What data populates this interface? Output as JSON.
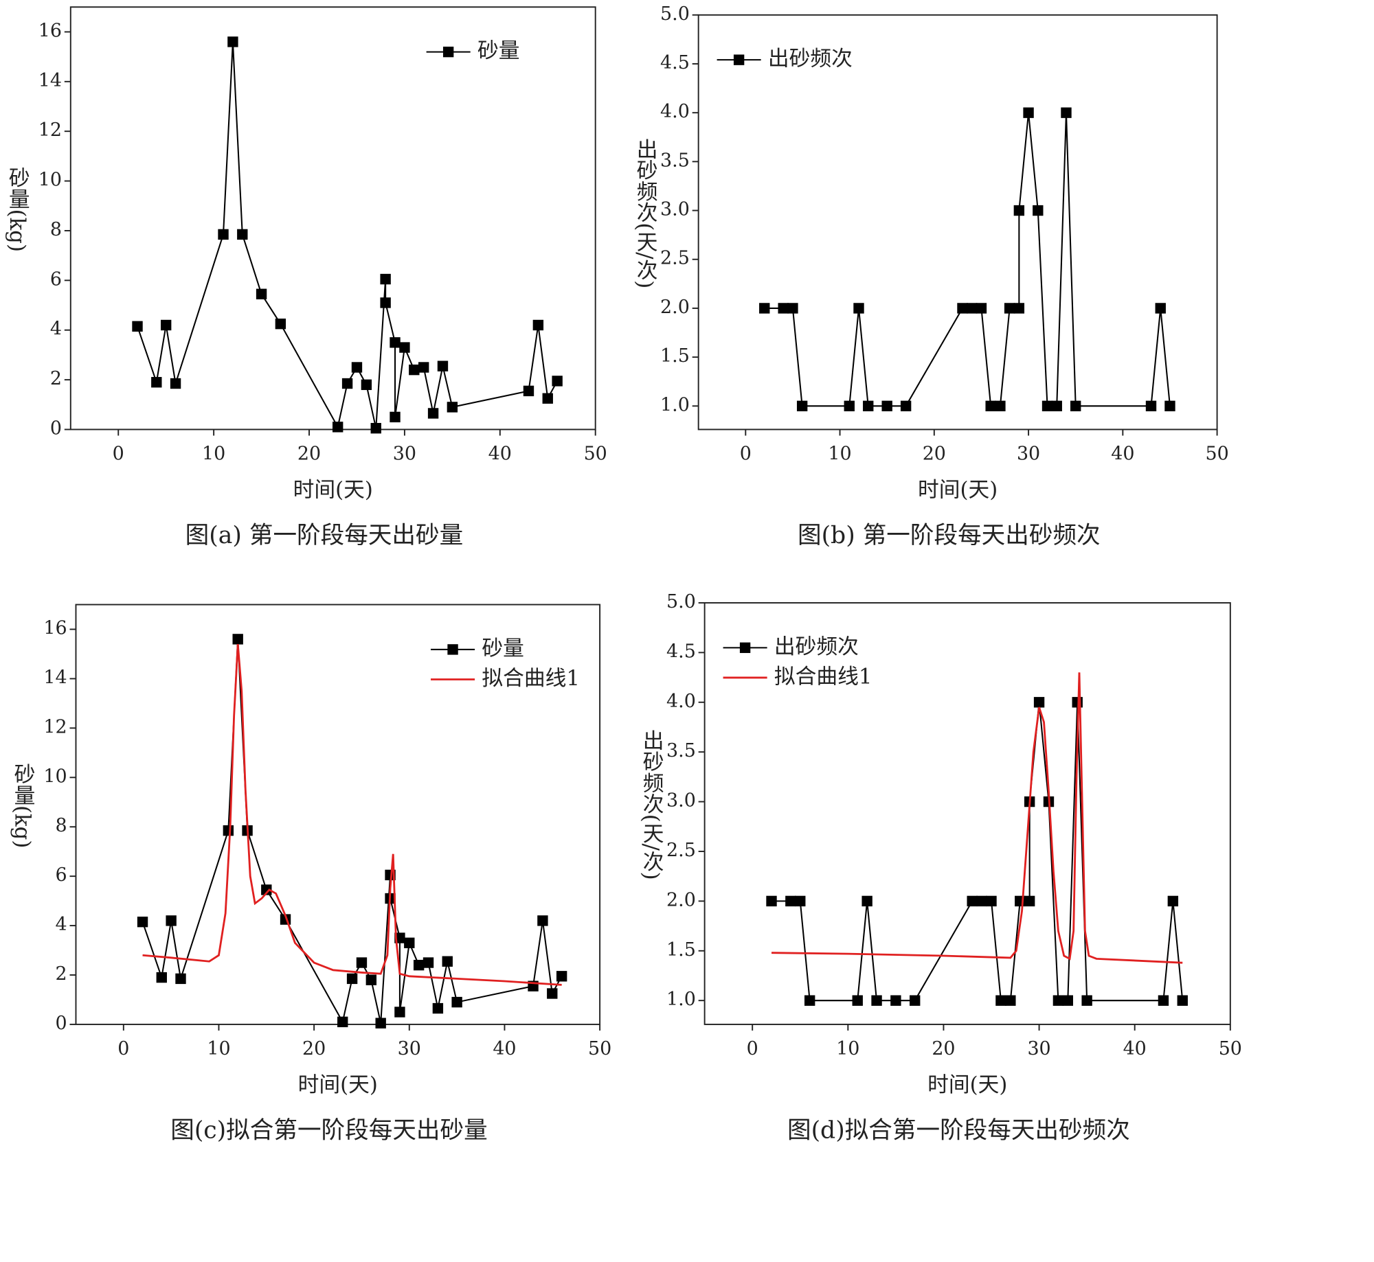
{
  "chart_data": [
    {
      "type": "line",
      "title": "图(a) 第一阶段每天出砂量",
      "x_label": "时间(天)",
      "y_label": "砂量(kg)",
      "legend": "upper right",
      "xlim": [
        -5,
        50
      ],
      "xticks": [
        0,
        10,
        20,
        30,
        40,
        50
      ],
      "ylim": [
        0,
        17
      ],
      "yticks": [
        0,
        2,
        4,
        6,
        8,
        10,
        12,
        14,
        16
      ],
      "series": [
        {
          "name": "砂量",
          "color": "#000000",
          "marker": "square",
          "x": [
            2,
            4,
            5,
            6,
            11,
            12,
            13,
            15,
            17,
            23,
            24,
            25,
            26,
            27,
            28,
            28,
            29,
            29,
            30,
            31,
            32,
            33,
            34,
            35,
            43,
            44,
            45,
            46
          ],
          "values": [
            4.15,
            1.9,
            4.2,
            1.85,
            7.85,
            15.6,
            7.85,
            5.45,
            4.25,
            0.1,
            1.85,
            2.5,
            1.8,
            0.05,
            6.05,
            5.1,
            3.5,
            0.5,
            3.3,
            2.4,
            2.5,
            0.65,
            2.55,
            0.9,
            1.55,
            4.2,
            1.25,
            1.95
          ]
        }
      ]
    },
    {
      "type": "line",
      "title": "图(b) 第一阶段每天出砂频次",
      "x_label": "时间(天)",
      "y_label": "出砂频次(天/次)",
      "legend": "upper left",
      "xlim": [
        -5,
        50
      ],
      "xticks": [
        0,
        10,
        20,
        30,
        40,
        50
      ],
      "ylim": [
        0.76,
        5
      ],
      "yticks": [
        {
          "value": 1,
          "label": "1.0"
        },
        1.5,
        {
          "value": 2,
          "label": "2.0"
        },
        2.5,
        {
          "value": 3,
          "label": "3.0"
        },
        3.5,
        {
          "value": 4,
          "label": "4.0"
        },
        4.5,
        {
          "value": 5,
          "label": "5.0"
        }
      ],
      "series": [
        {
          "name": "出砂频次",
          "color": "#000000",
          "marker": "square",
          "x": [
            2,
            4,
            5,
            6,
            11,
            12,
            13,
            15,
            17,
            23,
            24,
            25,
            26,
            27,
            28,
            29,
            29,
            30,
            31,
            32,
            33,
            34,
            35,
            43,
            44,
            45
          ],
          "values": [
            2,
            2,
            2,
            1,
            1,
            2,
            1,
            1,
            1,
            2,
            2,
            2,
            1,
            1,
            2,
            2,
            3,
            4,
            3,
            1,
            1,
            4,
            1,
            1,
            2,
            1
          ]
        }
      ]
    },
    {
      "type": "line",
      "title": "图(c)拟合第一阶段每天出砂量",
      "x_label": "时间(天)",
      "y_label": "砂量(kg)",
      "legend": "upper right",
      "xlim": [
        -5,
        50
      ],
      "xticks": [
        0,
        10,
        20,
        30,
        40,
        50
      ],
      "ylim": [
        0,
        17
      ],
      "yticks": [
        0,
        2,
        4,
        6,
        8,
        10,
        12,
        14,
        16
      ],
      "series": [
        {
          "name": "砂量",
          "color": "#000000",
          "marker": "square",
          "x": [
            2,
            4,
            5,
            6,
            11,
            12,
            13,
            15,
            17,
            23,
            24,
            25,
            26,
            27,
            28,
            28,
            29,
            29,
            30,
            31,
            32,
            33,
            34,
            35,
            43,
            44,
            45,
            46
          ],
          "values": [
            4.15,
            1.9,
            4.2,
            1.85,
            7.85,
            15.6,
            7.85,
            5.45,
            4.25,
            0.1,
            1.85,
            2.5,
            1.8,
            0.05,
            6.05,
            5.1,
            3.5,
            0.5,
            3.3,
            2.4,
            2.5,
            0.65,
            2.55,
            0.9,
            1.55,
            4.2,
            1.25,
            1.95
          ]
        },
        {
          "name": "拟合曲线1",
          "color": "#e02020",
          "marker": "none",
          "x": [
            2,
            5,
            9,
            10,
            10.7,
            11.2,
            11.6,
            12,
            12.4,
            12.8,
            13.3,
            13.8,
            14.5,
            15.3,
            16,
            17,
            18,
            20,
            22,
            25,
            27,
            27.7,
            28,
            28.3,
            28.6,
            29,
            30,
            35,
            40,
            46
          ],
          "values": [
            2.8,
            2.7,
            2.55,
            2.8,
            4.5,
            8,
            12.5,
            15.4,
            13.5,
            9.5,
            6,
            4.9,
            5.1,
            5.45,
            5.3,
            4.4,
            3.3,
            2.5,
            2.2,
            2.1,
            2.05,
            2.8,
            5.5,
            6.9,
            3.5,
            2.05,
            1.95,
            1.85,
            1.75,
            1.6
          ]
        }
      ]
    },
    {
      "type": "line",
      "title": "图(d)拟合第一阶段每天出砂频次",
      "x_label": "时间(天)",
      "y_label": "出砂频次(天/次)",
      "legend": "upper left",
      "xlim": [
        -5,
        50
      ],
      "xticks": [
        0,
        10,
        20,
        30,
        40,
        50
      ],
      "ylim": [
        0.76,
        5
      ],
      "yticks": [
        {
          "value": 1,
          "label": "1.0"
        },
        1.5,
        {
          "value": 2,
          "label": "2.0"
        },
        2.5,
        {
          "value": 3,
          "label": "3.0"
        },
        3.5,
        {
          "value": 4,
          "label": "4.0"
        },
        4.5,
        {
          "value": 5,
          "label": "5.0"
        }
      ],
      "series": [
        {
          "name": "出砂频次",
          "color": "#000000",
          "marker": "square",
          "x": [
            2,
            4,
            5,
            6,
            11,
            12,
            13,
            15,
            17,
            23,
            24,
            25,
            26,
            27,
            28,
            29,
            29,
            30,
            31,
            32,
            33,
            34,
            35,
            43,
            44,
            45
          ],
          "values": [
            2,
            2,
            2,
            1,
            1,
            2,
            1,
            1,
            1,
            2,
            2,
            2,
            1,
            1,
            2,
            2,
            3,
            4,
            3,
            1,
            1,
            4,
            1,
            1,
            2,
            1
          ]
        },
        {
          "name": "拟合曲线1",
          "color": "#e02020",
          "marker": "none",
          "x": [
            2,
            10,
            20,
            27,
            27.6,
            28.2,
            28.8,
            29.4,
            30,
            30.5,
            31,
            31.5,
            32,
            32.6,
            33.2,
            33.6,
            33.9,
            34.2,
            34.5,
            34.8,
            35.2,
            36,
            45
          ],
          "values": [
            1.48,
            1.47,
            1.45,
            1.43,
            1.5,
            1.9,
            2.7,
            3.5,
            3.95,
            3.8,
            3.1,
            2.3,
            1.7,
            1.45,
            1.42,
            1.7,
            3.2,
            4.3,
            3.0,
            1.7,
            1.45,
            1.42,
            1.38
          ]
        }
      ]
    }
  ]
}
